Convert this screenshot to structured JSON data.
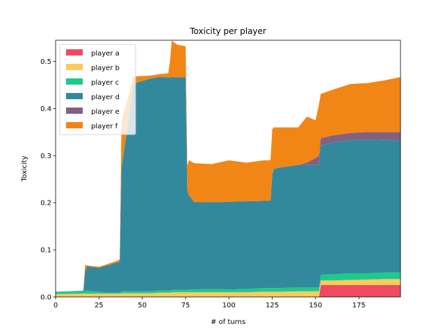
{
  "chart_data": {
    "type": "area",
    "stacked": true,
    "title": "Toxicity per player",
    "xlabel": "# of turns",
    "ylabel": "Toxicity",
    "xlim": [
      0,
      199
    ],
    "ylim": [
      0,
      0.545
    ],
    "xticks": [
      0,
      25,
      50,
      75,
      100,
      125,
      150,
      175
    ],
    "yticks": [
      0.0,
      0.1,
      0.2,
      0.3,
      0.4,
      0.5
    ],
    "xtick_labels": [
      "0",
      "25",
      "50",
      "75",
      "100",
      "125",
      "150",
      "175"
    ],
    "ytick_labels": [
      "0.0",
      "0.1",
      "0.2",
      "0.3",
      "0.4",
      "0.5"
    ],
    "legend_position": "top-left",
    "x": [
      0,
      16,
      17,
      18,
      25,
      30,
      35,
      37,
      38,
      45,
      55,
      60,
      65,
      66,
      67,
      70,
      75,
      76,
      77,
      80,
      90,
      100,
      110,
      120,
      124,
      125,
      126,
      130,
      140,
      145,
      150,
      152,
      153,
      160,
      170,
      180,
      190,
      199
    ],
    "series": [
      {
        "name": "player a",
        "color": "#ef4a60",
        "values": [
          0.0,
          0.0,
          0.0,
          0.0,
          0.0,
          0.0,
          0.0,
          0.0,
          0.0,
          0.0,
          0.0,
          0.0,
          0.0,
          0.0,
          0.0,
          0.0,
          0.0,
          0.0,
          0.0,
          0.0,
          0.0,
          0.0,
          0.0,
          0.0,
          0.0,
          0.0,
          0.0,
          0.0,
          0.0,
          0.0,
          0.0,
          0.0,
          0.025,
          0.025,
          0.025,
          0.025,
          0.025,
          0.025
        ]
      },
      {
        "name": "player b",
        "color": "#fdca5c",
        "values": [
          0.006,
          0.007,
          0.007,
          0.007,
          0.007,
          0.007,
          0.007,
          0.007,
          0.008,
          0.008,
          0.008,
          0.009,
          0.009,
          0.009,
          0.01,
          0.01,
          0.01,
          0.01,
          0.01,
          0.01,
          0.01,
          0.01,
          0.01,
          0.011,
          0.011,
          0.011,
          0.011,
          0.011,
          0.012,
          0.012,
          0.012,
          0.012,
          0.01,
          0.01,
          0.011,
          0.012,
          0.013,
          0.013
        ]
      },
      {
        "name": "player c",
        "color": "#1dca8d",
        "values": [
          0.005,
          0.005,
          0.006,
          0.006,
          0.004,
          0.002,
          0.002,
          0.002,
          0.004,
          0.004,
          0.004,
          0.005,
          0.005,
          0.005,
          0.005,
          0.005,
          0.005,
          0.005,
          0.006,
          0.006,
          0.007,
          0.006,
          0.007,
          0.008,
          0.008,
          0.008,
          0.008,
          0.008,
          0.008,
          0.008,
          0.008,
          0.008,
          0.012,
          0.013,
          0.014,
          0.013,
          0.014,
          0.014
        ]
      },
      {
        "name": "player d",
        "color": "#32899e",
        "values": [
          0.0,
          0.001,
          0.04,
          0.052,
          0.051,
          0.058,
          0.064,
          0.066,
          0.26,
          0.441,
          0.452,
          0.453,
          0.452,
          0.452,
          0.452,
          0.451,
          0.452,
          0.21,
          0.2,
          0.185,
          0.184,
          0.186,
          0.186,
          0.185,
          0.185,
          0.24,
          0.253,
          0.256,
          0.26,
          0.26,
          0.26,
          0.26,
          0.275,
          0.28,
          0.283,
          0.283,
          0.282,
          0.28
        ]
      },
      {
        "name": "player e",
        "color": "#84617f",
        "values": [
          0.0,
          0.0,
          0.0,
          0.0,
          0.0,
          0.0,
          0.0,
          0.0,
          0.0,
          0.0,
          0.0,
          0.0,
          0.0,
          0.0,
          0.0,
          0.0,
          0.0,
          0.0,
          0.0,
          0.0,
          0.0,
          0.0,
          0.0,
          0.0,
          0.0,
          0.0,
          0.0,
          0.0,
          0.0,
          0.005,
          0.015,
          0.02,
          0.015,
          0.015,
          0.015,
          0.017,
          0.016,
          0.018
        ]
      },
      {
        "name": "player f",
        "color": "#f18617",
        "values": [
          0.0,
          0.0,
          0.015,
          0.002,
          0.002,
          0.003,
          0.003,
          0.005,
          0.1,
          0.015,
          0.006,
          0.006,
          0.009,
          0.035,
          0.077,
          0.07,
          0.065,
          0.055,
          0.074,
          0.083,
          0.081,
          0.088,
          0.082,
          0.086,
          0.086,
          0.097,
          0.088,
          0.085,
          0.08,
          0.098,
          0.08,
          0.11,
          0.094,
          0.097,
          0.104,
          0.104,
          0.11,
          0.117
        ]
      }
    ]
  }
}
